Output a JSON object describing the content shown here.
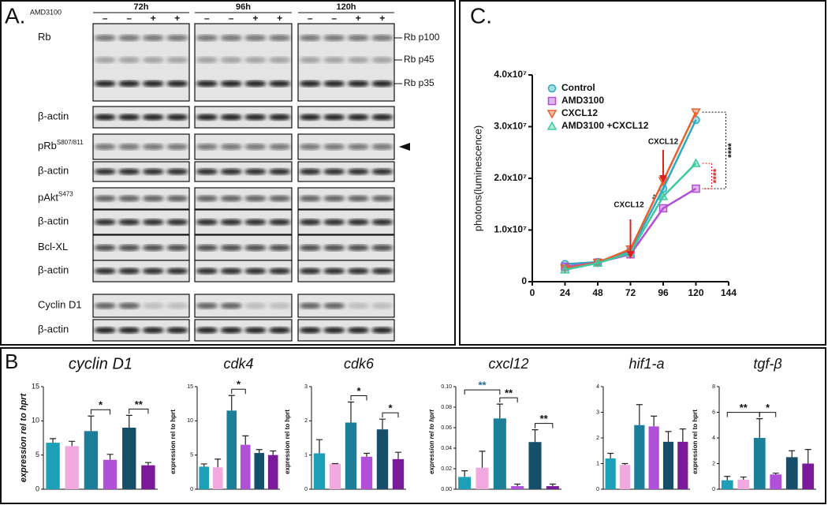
{
  "panel_a": {
    "label": "A.",
    "treatment": "AMD3100",
    "timepoints": [
      "72h",
      "96h",
      "120h"
    ],
    "signs": [
      "–",
      "–",
      "+",
      "+"
    ],
    "rows": [
      {
        "label": "Rb"
      },
      {
        "label": "β-actin"
      },
      {
        "label": "pRb",
        "sup": "S807/811"
      },
      {
        "label": "β-actin"
      },
      {
        "label": "pAkt",
        "sup": "S473"
      },
      {
        "label": "β-actin"
      },
      {
        "label": "Bcl-XL"
      },
      {
        "label": "β-actin"
      },
      {
        "label": "Cyclin D1"
      },
      {
        "label": "β-actin"
      }
    ],
    "bands": [
      "Rb p100",
      "Rb p45",
      "Rb p35"
    ]
  },
  "panel_b": {
    "label": "B"
  },
  "panel_c": {
    "label": "C."
  },
  "chart_data": [
    {
      "type": "line",
      "ylabel": "photons(luminescence)",
      "x": [
        24,
        48,
        72,
        96,
        120
      ],
      "xlim": [
        0,
        144
      ],
      "xticks": [
        0,
        24,
        48,
        72,
        96,
        120,
        144
      ],
      "ylim": [
        0,
        40000000
      ],
      "yticks": [
        0,
        {
          "value": 10000000,
          "label": "1.0x10⁷"
        },
        {
          "value": 20000000,
          "label": "2.0x10⁷"
        },
        {
          "value": 30000000,
          "label": "3.0x10⁷"
        },
        {
          "value": 40000000,
          "label": "4.0x10⁷"
        }
      ],
      "series": [
        {
          "name": "Control",
          "color": "#2aa8c4",
          "marker": "circle",
          "values": [
            3400000,
            3800000,
            6000000,
            18000000,
            31300000
          ]
        },
        {
          "name": "AMD3100",
          "color": "#b34fd6",
          "marker": "square",
          "values": [
            2900000,
            3700000,
            5300000,
            14200000,
            18000000
          ]
        },
        {
          "name": "CXCL12",
          "color": "#e8602c",
          "marker": "triangle-down",
          "values": [
            2600000,
            3700000,
            6300000,
            19500000,
            32800000
          ]
        },
        {
          "name": "AMD3100 +CXCL12",
          "color": "#3ec9a0",
          "marker": "triangle-up",
          "values": [
            2300000,
            3600000,
            5600000,
            16500000,
            22900000
          ]
        }
      ],
      "legend": "upper left",
      "annotations": [
        "CXCL12",
        "CXCL12",
        "****",
        "****",
        "**"
      ]
    },
    {
      "type": "bar",
      "title": "cyclin D1",
      "ylabel": "expression rel to hprt",
      "ylim": [
        0,
        15
      ],
      "yticks": [
        0,
        5,
        10,
        15
      ],
      "values": [
        6.8,
        6.3,
        8.5,
        4.3,
        9,
        3.5
      ],
      "errors": [
        0.6,
        0.7,
        2.2,
        0.8,
        1.8,
        0.4
      ],
      "colors": [
        "#1e9fb8",
        "#f2a9e0",
        "#1b7f9a",
        "#b04fd8",
        "#164f6a",
        "#7a1a9a"
      ],
      "annotations": [
        "*",
        "**"
      ]
    },
    {
      "type": "bar",
      "title": "cdk4",
      "ylabel": "expression rel to hprt",
      "ylim": [
        0,
        15
      ],
      "yticks": [
        0,
        5,
        10,
        15
      ],
      "values": [
        3.3,
        3.2,
        11.5,
        6.5,
        5.3,
        5
      ],
      "errors": [
        0.4,
        1.2,
        2.2,
        1.3,
        0.5,
        0.6
      ],
      "colors": [
        "#1e9fb8",
        "#f2a9e0",
        "#1b7f9a",
        "#b04fd8",
        "#164f6a",
        "#7a1a9a"
      ],
      "annotations": [
        "*"
      ]
    },
    {
      "type": "bar",
      "title": "cdk6",
      "ylabel": "expression rel to hprt",
      "ylim": [
        0,
        3
      ],
      "yticks": [
        0,
        1,
        2,
        3
      ],
      "values": [
        1.05,
        0.75,
        1.95,
        0.95,
        1.75,
        0.88
      ],
      "errors": [
        0.4,
        0,
        0.6,
        0.1,
        0.3,
        0.2
      ],
      "colors": [
        "#1e9fb8",
        "#f2a9e0",
        "#1b7f9a",
        "#b04fd8",
        "#164f6a",
        "#7a1a9a"
      ],
      "annotations": [
        "*",
        "*"
      ]
    },
    {
      "type": "bar",
      "title": "cxcl12",
      "ylabel": "expression rel to hprt",
      "ylim": [
        0,
        0.1
      ],
      "yticks": [
        {
          "value": 0,
          "label": "0.00"
        },
        {
          "value": 0.02,
          "label": "0.02"
        },
        {
          "value": 0.04,
          "label": "0.04"
        },
        {
          "value": 0.06,
          "label": "0.06"
        },
        {
          "value": 0.08,
          "label": "0.08"
        },
        {
          "value": 0.1,
          "label": "0.10"
        }
      ],
      "values": [
        0.012,
        0.021,
        0.069,
        0.003,
        0.046,
        0.003
      ],
      "errors": [
        0.006,
        0.016,
        0.014,
        0.002,
        0.012,
        0.002
      ],
      "colors": [
        "#1e9fb8",
        "#f2a9e0",
        "#1b7f9a",
        "#b04fd8",
        "#164f6a",
        "#7a1a9a"
      ],
      "annotations": [
        "**",
        "**",
        "**"
      ]
    },
    {
      "type": "bar",
      "title": "hif1-a",
      "ylim": [
        0,
        4
      ],
      "yticks": [
        0,
        1,
        2,
        3,
        4
      ],
      "values": [
        1.2,
        0.95,
        2.5,
        2.45,
        1.85,
        1.85
      ],
      "errors": [
        0.2,
        0.05,
        0.8,
        0.4,
        0.4,
        0.5
      ],
      "colors": [
        "#1e9fb8",
        "#f2a9e0",
        "#1b7f9a",
        "#b04fd8",
        "#164f6a",
        "#7a1a9a"
      ],
      "annotations": []
    },
    {
      "type": "bar",
      "title": "tgf-β",
      "ylabel": "expression rel to hprt",
      "ylim": [
        0,
        8
      ],
      "yticks": [
        0,
        2,
        4,
        6,
        8
      ],
      "values": [
        0.7,
        0.75,
        4,
        1.15,
        2.5,
        2
      ],
      "errors": [
        0.3,
        0.2,
        1.5,
        0.1,
        0.5,
        1.1
      ],
      "colors": [
        "#1e9fb8",
        "#f2a9e0",
        "#1b7f9a",
        "#b04fd8",
        "#164f6a",
        "#7a1a9a"
      ],
      "annotations": [
        "**",
        "*"
      ]
    }
  ]
}
